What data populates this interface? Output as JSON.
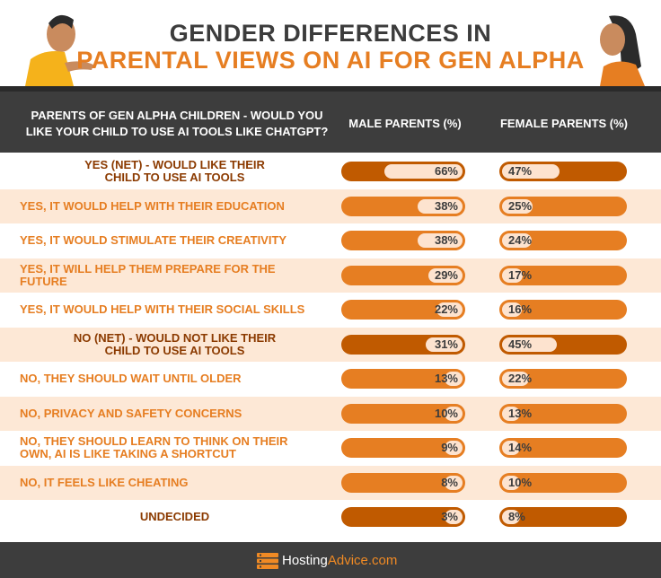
{
  "title": {
    "line1": "GENDER DIFFERENCES IN",
    "line2": "PARENTAL VIEWS ON AI FOR GEN ALPHA"
  },
  "columns": {
    "question": "PARENTS OF GEN ALPHA CHILDREN - WOULD YOU LIKE YOUR CHILD TO USE AI TOOLS LIKE CHATGPT?",
    "male": "MALE PARENTS (%)",
    "female": "FEMALE PARENTS (%)"
  },
  "colors": {
    "accent": "#e67e22",
    "dark_accent": "#c05a00",
    "light": "#fde3cf",
    "header_bg": "#3d3d3d"
  },
  "chart_data": {
    "type": "table",
    "categories": [
      "YES (NET) - WOULD LIKE THEIR CHILD TO USE AI TOOLS",
      "YES, IT WOULD HELP WITH THEIR EDUCATION",
      "YES, IT WOULD STIMULATE THEIR CREATIVITY",
      "YES, IT WILL HELP THEM PREPARE FOR THE FUTURE",
      "YES, IT WOULD HELP WITH THEIR SOCIAL SKILLS",
      "NO (NET) - WOULD NOT LIKE THEIR CHILD TO USE AI TOOLS",
      "NO, THEY SHOULD WAIT UNTIL OLDER",
      "NO, PRIVACY AND SAFETY CONCERNS",
      "NO, THEY SHOULD LEARN TO THINK ON THEIR OWN, AI IS LIKE TAKING A SHORTCUT",
      "NO, IT FEELS LIKE CHEATING",
      "UNDECIDED"
    ],
    "label_lines": [
      [
        "YES (NET) - WOULD LIKE THEIR",
        "CHILD TO USE AI TOOLS"
      ],
      [
        "YES, IT WOULD HELP WITH THEIR EDUCATION"
      ],
      [
        "YES, IT WOULD STIMULATE THEIR CREATIVITY"
      ],
      [
        "YES, IT WILL HELP THEM PREPARE FOR THE",
        "FUTURE"
      ],
      [
        "YES, IT WOULD HELP WITH THEIR SOCIAL SKILLS"
      ],
      [
        "NO (NET) - WOULD NOT LIKE THEIR",
        "CHILD TO USE AI TOOLS"
      ],
      [
        "NO, THEY SHOULD WAIT UNTIL OLDER"
      ],
      [
        "NO, PRIVACY AND SAFETY CONCERNS"
      ],
      [
        "NO, THEY SHOULD LEARN TO THINK ON THEIR",
        "OWN, AI IS LIKE TAKING A SHORTCUT"
      ],
      [
        "NO, IT FEELS LIKE CHEATING"
      ],
      [
        "UNDECIDED"
      ]
    ],
    "net_rows": [
      true,
      false,
      false,
      false,
      false,
      true,
      false,
      false,
      false,
      false,
      true
    ],
    "series": [
      {
        "name": "MALE PARENTS (%)",
        "values": [
          66,
          38,
          38,
          29,
          22,
          31,
          13,
          10,
          9,
          8,
          3
        ]
      },
      {
        "name": "FEMALE PARENTS (%)",
        "values": [
          47,
          25,
          24,
          17,
          16,
          45,
          22,
          13,
          14,
          10,
          8
        ]
      }
    ],
    "value_labels": {
      "male": [
        "66%",
        "38%",
        "38%",
        "29%",
        "22%",
        "31%",
        "13%",
        "10%",
        "9%",
        "8%",
        "3%"
      ],
      "female": [
        "47%",
        "25%",
        "24%",
        "17%",
        "16%",
        "45%",
        "22%",
        "13%",
        "14%",
        "10%",
        "8%"
      ]
    },
    "xlim": [
      0,
      100
    ]
  },
  "footer": {
    "brand_part1": "Hosting",
    "brand_part2": "Advice.com",
    "logo_icon": "server-stack-icon"
  }
}
